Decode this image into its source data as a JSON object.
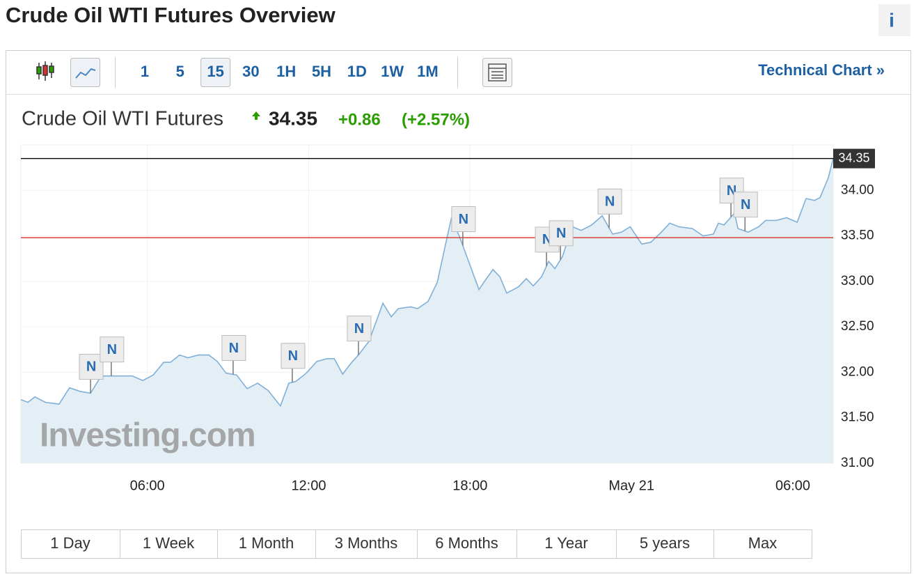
{
  "header": {
    "title": "Crude Oil WTI Futures Overview",
    "info": "i"
  },
  "toolbar": {
    "intervals": [
      "1",
      "5",
      "15",
      "30",
      "1H",
      "5H",
      "1D",
      "1W",
      "1M"
    ],
    "active_interval": "15",
    "technical_chart": "Technical Chart »"
  },
  "quote": {
    "name": "Crude Oil WTI Futures",
    "price": "34.35",
    "change": "+0.86",
    "change_percent": "(+2.57%)"
  },
  "chart_data": {
    "type": "area",
    "x": [
      1.3,
      1.56,
      1.82,
      2.21,
      2.72,
      3.11,
      3.5,
      3.89,
      4.28,
      4.66,
      5.44,
      5.83,
      6.22,
      6.61,
      6.86,
      7.2,
      7.51,
      7.9,
      8.29,
      8.6,
      8.93,
      9.32,
      9.71,
      10.1,
      10.49,
      10.95,
      11.26,
      11.52,
      11.91,
      12.3,
      12.69,
      12.95,
      13.26,
      13.6,
      13.85,
      14.24,
      14.76,
      15.07,
      15.33,
      15.79,
      16.05,
      16.44,
      16.78,
      17.09,
      17.3,
      17.61,
      17.92,
      18.33,
      18.56,
      18.85,
      19.11,
      19.36,
      19.8,
      20.09,
      20.35,
      20.66,
      20.92,
      21.15,
      21.43,
      21.8,
      22.13,
      22.52,
      22.91,
      23.3,
      23.63,
      23.95,
      24.38,
      24.72,
      25.11,
      25.42,
      25.76,
      26.27,
      26.66,
      27.05,
      27.23,
      27.44,
      27.83,
      27.96,
      28.34,
      28.73,
      28.99,
      29.38,
      29.77,
      30.16,
      30.49,
      30.8,
      31.01,
      31.32,
      31.5
    ],
    "values": [
      31.7,
      31.67,
      31.73,
      31.67,
      31.65,
      31.83,
      31.79,
      31.77,
      31.96,
      31.96,
      31.96,
      31.91,
      31.97,
      32.11,
      32.11,
      32.19,
      32.16,
      32.19,
      32.19,
      32.12,
      31.99,
      31.97,
      31.82,
      31.88,
      31.8,
      31.63,
      31.88,
      31.9,
      31.99,
      32.12,
      32.15,
      32.15,
      31.98,
      32.11,
      32.19,
      32.34,
      32.76,
      32.61,
      32.7,
      32.72,
      32.7,
      32.78,
      32.99,
      33.41,
      33.69,
      33.49,
      33.24,
      32.91,
      33.01,
      33.13,
      33.05,
      32.87,
      32.94,
      33.03,
      32.95,
      33.05,
      33.22,
      33.14,
      33.27,
      33.6,
      33.56,
      33.62,
      33.72,
      33.52,
      33.54,
      33.6,
      33.41,
      33.43,
      33.54,
      33.64,
      33.6,
      33.58,
      33.5,
      33.52,
      33.64,
      33.62,
      33.75,
      33.58,
      33.54,
      33.6,
      33.67,
      33.67,
      33.7,
      33.65,
      33.91,
      33.89,
      33.92,
      34.14,
      34.35
    ],
    "color": "#7fb0d8",
    "fill": "#e4eef5",
    "xlim": [
      1.3,
      31.5
    ],
    "xticks": [
      {
        "value": 6,
        "label": "06:00"
      },
      {
        "value": 12,
        "label": "12:00"
      },
      {
        "value": 18,
        "label": "18:00"
      },
      {
        "value": 24,
        "label": "May 21"
      },
      {
        "value": 30,
        "label": "06:00"
      }
    ],
    "ylim": [
      31,
      34.5
    ],
    "yticks": [
      {
        "value": 31,
        "label": "31.00"
      },
      {
        "value": 31.5,
        "label": "31.50"
      },
      {
        "value": 32,
        "label": "32.00"
      },
      {
        "value": 32.5,
        "label": "32.50"
      },
      {
        "value": 33,
        "label": "33.00"
      },
      {
        "value": 33.5,
        "label": "33.50"
      },
      {
        "value": 34,
        "label": "34.00"
      }
    ],
    "grid": true,
    "hlines": [
      {
        "value": 34.35,
        "color": "#000000"
      },
      {
        "value": 33.48,
        "color": "#d9302c"
      }
    ],
    "news_markers": [
      {
        "x": 3.89,
        "text": "N"
      },
      {
        "x": 4.66,
        "text": "N"
      },
      {
        "x": 9.19,
        "text": "N"
      },
      {
        "x": 11.39,
        "text": "N"
      },
      {
        "x": 13.85,
        "text": "N"
      },
      {
        "x": 17.73,
        "text": "N"
      },
      {
        "x": 20.84,
        "text": "N"
      },
      {
        "x": 21.36,
        "text": "N"
      },
      {
        "x": 23.17,
        "text": "N"
      },
      {
        "x": 27.7,
        "text": "N"
      },
      {
        "x": 28.22,
        "text": "N"
      }
    ],
    "watermark": "Investing.com"
  },
  "ranges": [
    "1 Day",
    "1 Week",
    "1 Month",
    "3 Months",
    "6 Months",
    "1 Year",
    "5 years",
    "Max"
  ]
}
